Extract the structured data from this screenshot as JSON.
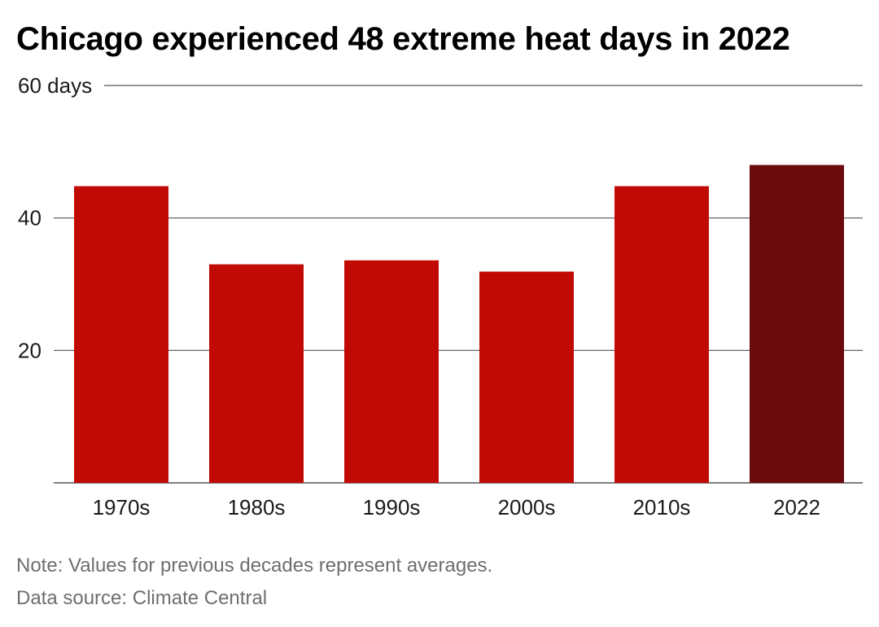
{
  "title": "Chicago experienced 48 extreme heat days in 2022",
  "note": "Note: Values for previous decades represent averages.",
  "source": "Data source: Climate Central",
  "colors": {
    "bar": "#c20a05",
    "highlight": "#6b0a0c",
    "grid": "#555555",
    "text": "#1a1a1a",
    "footer": "#6e6e6e"
  },
  "chart_data": {
    "type": "bar",
    "title": "Chicago experienced 48 extreme heat days in 2022",
    "xlabel": "",
    "ylabel": "",
    "categories": [
      "1970s",
      "1980s",
      "1990s",
      "2000s",
      "2010s",
      "2022"
    ],
    "values": [
      44.8,
      33.0,
      33.6,
      31.9,
      44.8,
      48.0
    ],
    "highlight_category": "2022",
    "ylim": [
      0,
      60
    ],
    "yticks": [
      20,
      40,
      60
    ],
    "ytick_labels": [
      "20",
      "40",
      "60 days"
    ],
    "grid": true,
    "legend": "none"
  }
}
